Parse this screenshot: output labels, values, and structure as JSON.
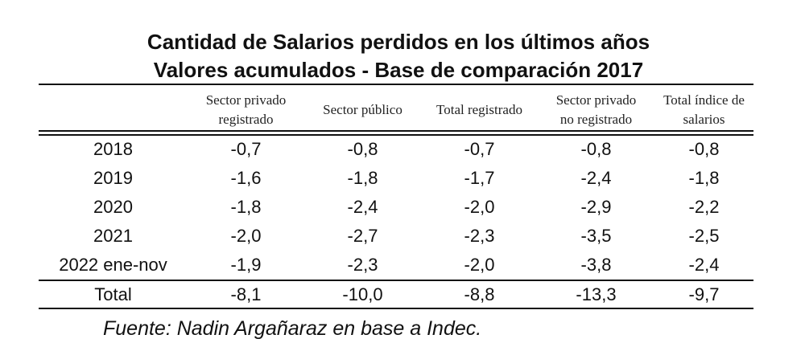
{
  "title": {
    "line1": "Cantidad de Salarios perdidos en los últimos años",
    "line2": "Valores acumulados - Base de comparación 2017"
  },
  "headers": [
    {
      "line1": "Sector privado",
      "line2": "registrado"
    },
    {
      "line1": "Sector público",
      "line2": ""
    },
    {
      "line1": "Total registrado",
      "line2": ""
    },
    {
      "line1": "Sector privado",
      "line2": "no registrado"
    },
    {
      "line1": "Total índice de",
      "line2": "salarios"
    }
  ],
  "rows": [
    {
      "label": "2018",
      "values": [
        "-0,7",
        "-0,8",
        "-0,7",
        "-0,8",
        "-0,8"
      ]
    },
    {
      "label": "2019",
      "values": [
        "-1,6",
        "-1,8",
        "-1,7",
        "-2,4",
        "-1,8"
      ]
    },
    {
      "label": "2020",
      "values": [
        "-1,8",
        "-2,4",
        "-2,0",
        "-2,9",
        "-2,2"
      ]
    },
    {
      "label": "2021",
      "values": [
        "-2,0",
        "-2,7",
        "-2,3",
        "-3,5",
        "-2,5"
      ]
    },
    {
      "label": "2022 ene-nov",
      "values": [
        "-1,9",
        "-2,3",
        "-2,0",
        "-3,8",
        "-2,4"
      ]
    }
  ],
  "total": {
    "label": "Total",
    "values": [
      "-8,1",
      "-10,0",
      "-8,8",
      "-13,3",
      "-9,7"
    ]
  },
  "source": "Fuente: Nadin Argañaraz en base a Indec."
}
